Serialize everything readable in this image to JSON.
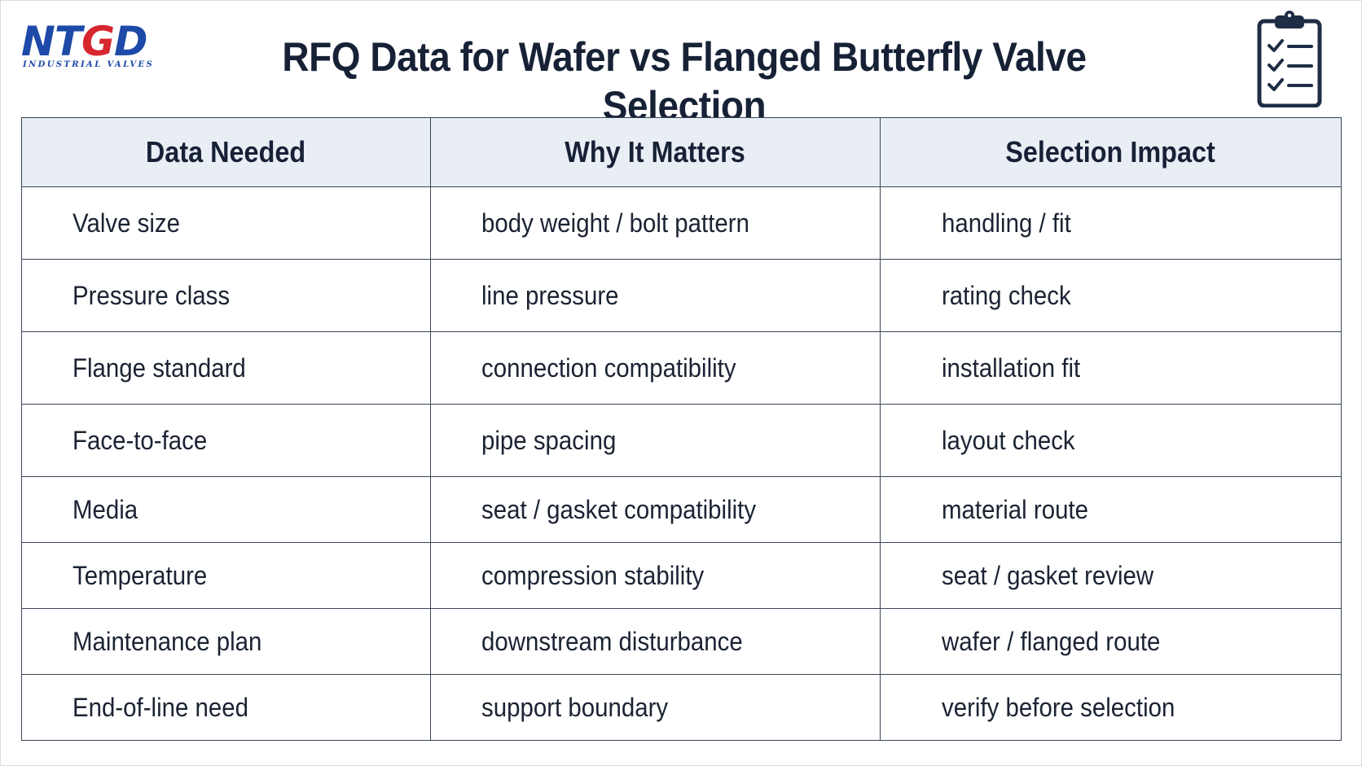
{
  "brand": {
    "logo_prefix": "NT",
    "logo_red": "G",
    "logo_suffix": "D",
    "logo_text": "NTGD",
    "subtitle": "INDUSTRIAL VALVES",
    "primary_color": "#1d4aa8",
    "accent_color": "#d6272f"
  },
  "page": {
    "title": "RFQ Data for Wafer vs Flanged Butterfly Valve Selection",
    "icon": "clipboard-checklist-icon"
  },
  "table": {
    "headers": [
      "Data Needed",
      "Why It Matters",
      "Selection Impact"
    ],
    "header_bg": "#e9eef5",
    "rows": [
      [
        "Valve size",
        "body weight / bolt pattern",
        "handling / fit"
      ],
      [
        "Pressure class",
        "line pressure",
        "rating check"
      ],
      [
        "Flange standard",
        "connection compatibility",
        "installation fit"
      ],
      [
        "Face-to-face",
        "pipe spacing",
        "layout check"
      ],
      [
        "Media",
        "seat / gasket compatibility",
        "material route"
      ],
      [
        "Temperature",
        "compression stability",
        "seat / gasket review"
      ],
      [
        "Maintenance plan",
        "downstream disturbance",
        "wafer / flanged route"
      ],
      [
        "End-of-line need",
        "support boundary",
        "verify before selection"
      ]
    ]
  }
}
